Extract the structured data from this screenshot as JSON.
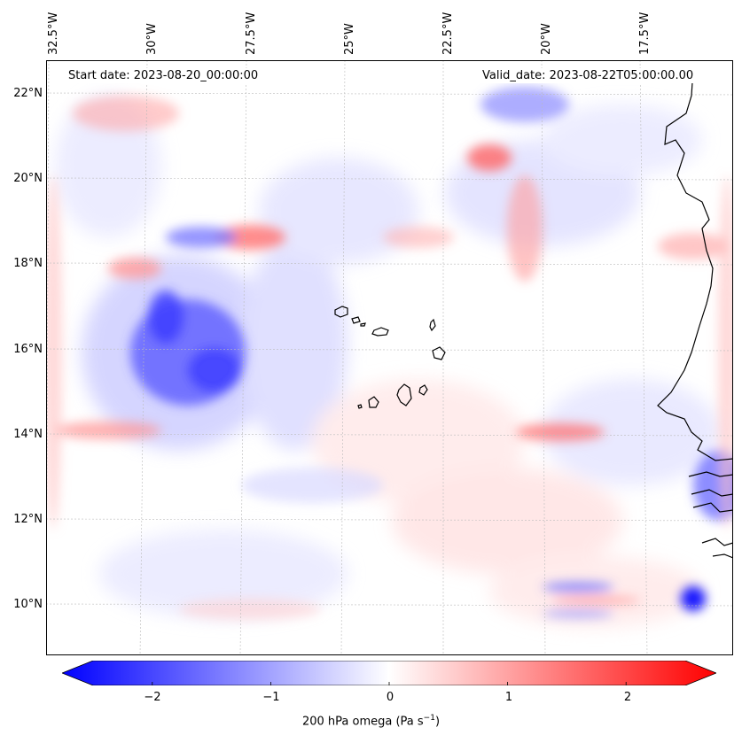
{
  "map": {
    "start_date": "Start date: 2023-08-20_00:00:00",
    "valid_date": "Valid_date: 2023-08-22T05:00:00.00",
    "lon_labels": [
      "32.5°W",
      "30°W",
      "27.5°W",
      "25°W",
      "22.5°W",
      "20°W",
      "17.5°W"
    ],
    "lat_labels": [
      "22°N",
      "20°N",
      "18°N",
      "16°N",
      "14°N",
      "12°N",
      "10°N"
    ],
    "extent": {
      "lon": [
        -32.7,
        -15.6
      ],
      "lat": [
        8.9,
        22.8
      ]
    }
  },
  "colorbar": {
    "ticks": [
      "−2",
      "−1",
      "0",
      "1",
      "2"
    ],
    "tick_values": [
      -2,
      -1,
      0,
      1,
      2
    ],
    "range": [
      -2.5,
      2.5
    ],
    "label": "200 hPa omega (Pa s",
    "label_sup": "−1",
    "label_end": ")",
    "cmap": "bwr",
    "colors": {
      "min": "#0000ff",
      "mid": "#ffffff",
      "max": "#ff0000"
    }
  }
}
